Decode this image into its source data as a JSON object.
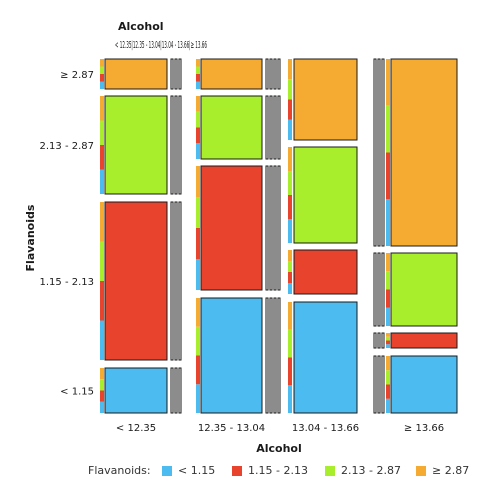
{
  "chart_data": {
    "type": "mosaic",
    "top_label": "Alcohol",
    "top_split_label": "< 12.35|12.35 - 13.04|13.04 - 13.66|≥ 13.66",
    "xlabel": "Alcohol",
    "ylabel": "Flavanoids",
    "x_categories": [
      "< 12.35",
      "12.35 - 13.04",
      "13.04 - 13.66",
      "≥ 13.66"
    ],
    "y_categories": [
      "< 1.15",
      "1.15 - 2.13",
      "2.13 - 2.87",
      "≥ 2.87"
    ],
    "colors": {
      "< 1.15": "#4cbcf0",
      "1.15 - 2.13": "#e8442d",
      "2.13 - 2.87": "#a8ee2c",
      "≥ 2.87": "#f5ab32"
    },
    "cells": [
      {
        "x": "< 12.35",
        "y": "< 1.15",
        "fraction": 0.1
      },
      {
        "x": "< 12.35",
        "y": "1.15 - 2.13",
        "fraction": 0.53
      },
      {
        "x": "< 12.35",
        "y": "2.13 - 2.87",
        "fraction": 0.32
      },
      {
        "x": "< 12.35",
        "y": "≥ 2.87",
        "fraction": 0.09
      },
      {
        "x": "12.35 - 13.04",
        "y": "< 1.15",
        "fraction": 0.34
      },
      {
        "x": "12.35 - 13.04",
        "y": "1.15 - 2.13",
        "fraction": 0.42
      },
      {
        "x": "12.35 - 13.04",
        "y": "2.13 - 2.87",
        "fraction": 0.2
      },
      {
        "x": "12.35 - 13.04",
        "y": "≥ 2.87",
        "fraction": 0.1
      },
      {
        "x": "13.04 - 13.66",
        "y": "< 1.15",
        "fraction": 0.36
      },
      {
        "x": "13.04 - 13.66",
        "y": "1.15 - 2.13",
        "fraction": 0.15
      },
      {
        "x": "13.04 - 13.66",
        "y": "2.13 - 2.87",
        "fraction": 0.32
      },
      {
        "x": "13.04 - 13.66",
        "y": "≥ 2.87",
        "fraction": 0.25
      },
      {
        "x": "≥ 13.66",
        "y": "< 1.15",
        "fraction": 0.18
      },
      {
        "x": "≥ 13.66",
        "y": "1.15 - 2.13",
        "fraction": 0.05
      },
      {
        "x": "≥ 13.66",
        "y": "2.13 - 2.87",
        "fraction": 0.24
      },
      {
        "x": "≥ 13.66",
        "y": "≥ 2.87",
        "fraction": 0.62
      }
    ]
  },
  "legend": {
    "title": "Flavanoids:",
    "items": [
      {
        "label": "< 1.15",
        "color": "#4cbcf0"
      },
      {
        "label": "1.15 - 2.13",
        "color": "#e8442d"
      },
      {
        "label": "2.13 - 2.87",
        "color": "#a8ee2c"
      },
      {
        "label": "≥ 2.87",
        "color": "#f5ab32"
      }
    ]
  }
}
